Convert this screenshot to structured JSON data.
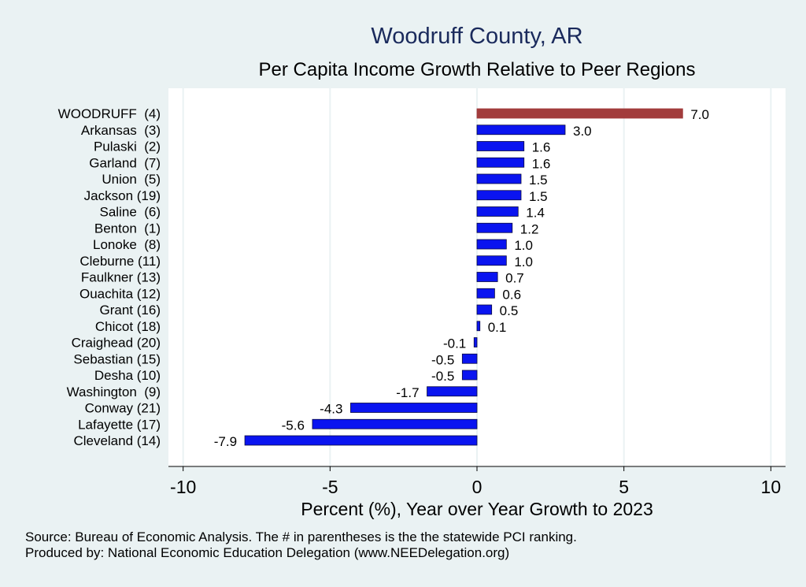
{
  "colors": {
    "background": "#eaf2f3",
    "plot_background": "#ffffff",
    "grid": "#eaf2f3",
    "highlight_bar": "#a23c3c",
    "bar": "#0a14f0",
    "bar_outline": "#0a0a40",
    "title": "#1a2a5c"
  },
  "chart_data": {
    "type": "bar",
    "orientation": "horizontal",
    "title": "Woodruff County, AR",
    "subtitle": "Per Capita Income Growth Relative to Peer Regions",
    "xlabel": "Percent (%), Year over Year Growth to 2023",
    "ylabel": "",
    "xlim": [
      -10.5,
      10.5
    ],
    "xticks": [
      -10,
      -5,
      0,
      5,
      10
    ],
    "xtick_labels": [
      "-10",
      "-5",
      "0",
      "5",
      "10"
    ],
    "grid": "vertical",
    "highlight_index": 0,
    "categories": [
      "WOODRUFF  (4)",
      "Arkansas  (3)",
      "Pulaski  (2)",
      "Garland  (7)",
      "Union  (5)",
      "Jackson (19)",
      "Saline  (6)",
      "Benton  (1)",
      "Lonoke  (8)",
      "Cleburne (11)",
      "Faulkner (13)",
      "Ouachita (12)",
      "Grant (16)",
      "Chicot (18)",
      "Craighead (20)",
      "Sebastian (15)",
      "Desha (10)",
      "Washington  (9)",
      "Conway (21)",
      "Lafayette (17)",
      "Cleveland (14)"
    ],
    "values": [
      7.0,
      3.0,
      1.6,
      1.6,
      1.5,
      1.5,
      1.4,
      1.2,
      1.0,
      1.0,
      0.7,
      0.6,
      0.5,
      0.1,
      -0.1,
      -0.5,
      -0.5,
      -1.7,
      -4.3,
      -5.6,
      -7.9
    ],
    "value_labels": [
      "7.0",
      "3.0",
      "1.6",
      "1.6",
      "1.5",
      "1.5",
      "1.4",
      "1.2",
      "1.0",
      "1.0",
      "0.7",
      "0.6",
      "0.5",
      "0.1",
      "-0.1",
      "-0.5",
      "-0.5",
      "-1.7",
      "-4.3",
      "-5.6",
      "-7.9"
    ]
  },
  "footer": {
    "source": "Source: Bureau of Economic Analysis. The # in parentheses is the the statewide PCI ranking.",
    "produced_by": "Produced by: National Economic Education Delegation (www.NEEDelegation.org)"
  }
}
